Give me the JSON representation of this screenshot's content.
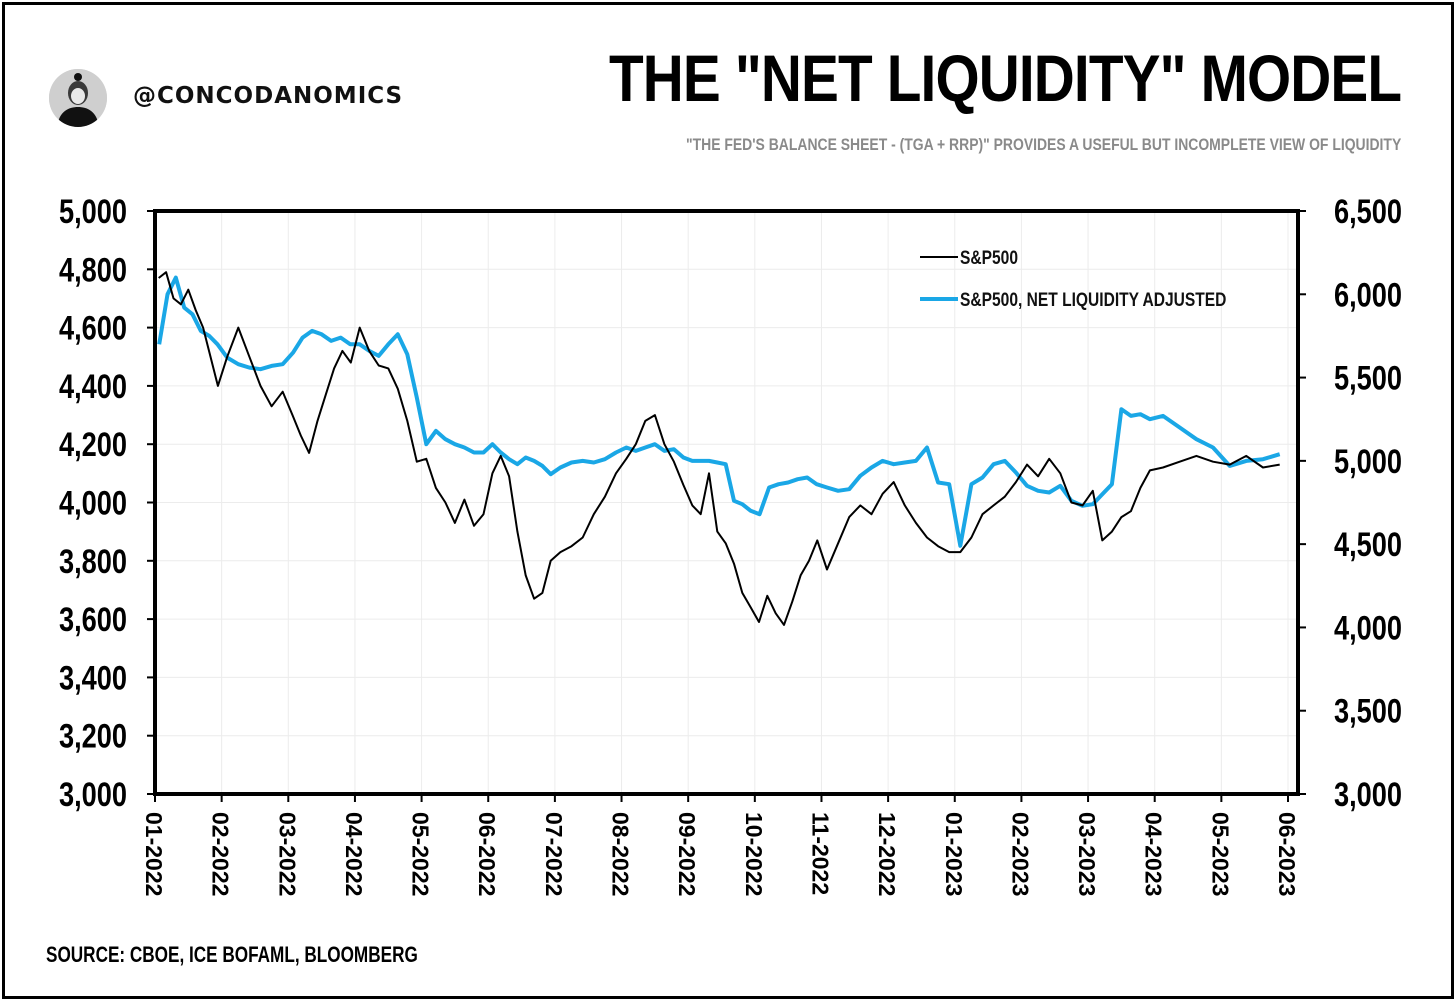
{
  "header": {
    "handle": "@CONCODANOMICS",
    "title": "THE \"NET LIQUIDITY\" MODEL",
    "subtitle": "\"THE FED'S BALANCE SHEET - (TGA + RRP)\" PROVIDES A USEFUL BUT INCOMPLETE VIEW OF LIQUIDITY"
  },
  "footer": {
    "source": "SOURCE: CBOE, ICE BOFAML, BLOOMBERG"
  },
  "chart_data": {
    "type": "line",
    "title": "THE \"NET LIQUIDITY\" MODEL",
    "x_ticks": [
      "01-2022",
      "02-2022",
      "03-2022",
      "04-2022",
      "05-2022",
      "06-2022",
      "07-2022",
      "08-2022",
      "09-2022",
      "10-2022",
      "11-2022",
      "12-2022",
      "01-2023",
      "02-2023",
      "03-2023",
      "04-2023",
      "05-2023",
      "06-2023"
    ],
    "y_left": {
      "min": 3000,
      "max": 5000,
      "ticks": [
        "3,000",
        "3,200",
        "3,400",
        "3,600",
        "3,800",
        "4,000",
        "4,200",
        "4,400",
        "4,600",
        "4,800",
        "5,000"
      ]
    },
    "y_right": {
      "min": 3000,
      "max": 6500,
      "ticks": [
        "3,000",
        "3,500",
        "4,000",
        "4,500",
        "5,000",
        "5,500",
        "6,000",
        "6,500"
      ]
    },
    "grid": true,
    "legend_position": "top-right",
    "colors": {
      "sp500": "#000000",
      "adjusted": "#1aa7e6"
    },
    "series": [
      {
        "name": "S&P500",
        "axis": "left",
        "points": [
          [
            "01-2022",
            4770
          ],
          [
            "01-2022",
            4790
          ],
          [
            "01-2022",
            4700
          ],
          [
            "01-2022",
            4680
          ],
          [
            "01-2022",
            4730
          ],
          [
            "01-2022",
            4660
          ],
          [
            "01-2022",
            4600
          ],
          [
            "01-2022",
            4500
          ],
          [
            "01-2022",
            4400
          ],
          [
            "02-2022",
            4500
          ],
          [
            "02-2022",
            4600
          ],
          [
            "02-2022",
            4500
          ],
          [
            "02-2022",
            4400
          ],
          [
            "02-2022",
            4330
          ],
          [
            "02-2022",
            4380
          ],
          [
            "03-2022",
            4300
          ],
          [
            "03-2022",
            4230
          ],
          [
            "03-2022",
            4170
          ],
          [
            "03-2022",
            4280
          ],
          [
            "03-2022",
            4370
          ],
          [
            "03-2022",
            4460
          ],
          [
            "03-2022",
            4520
          ],
          [
            "03-2022",
            4480
          ],
          [
            "04-2022",
            4600
          ],
          [
            "04-2022",
            4520
          ],
          [
            "04-2022",
            4470
          ],
          [
            "04-2022",
            4460
          ],
          [
            "04-2022",
            4390
          ],
          [
            "04-2022",
            4280
          ],
          [
            "04-2022",
            4140
          ],
          [
            "05-2022",
            4150
          ],
          [
            "05-2022",
            4050
          ],
          [
            "05-2022",
            4000
          ],
          [
            "05-2022",
            3930
          ],
          [
            "05-2022",
            4010
          ],
          [
            "05-2022",
            3920
          ],
          [
            "05-2022",
            3960
          ],
          [
            "06-2022",
            4100
          ],
          [
            "06-2022",
            4160
          ],
          [
            "06-2022",
            4090
          ],
          [
            "06-2022",
            3900
          ],
          [
            "06-2022",
            3750
          ],
          [
            "06-2022",
            3670
          ],
          [
            "06-2022",
            3690
          ],
          [
            "06-2022",
            3800
          ],
          [
            "07-2022",
            3830
          ],
          [
            "07-2022",
            3850
          ],
          [
            "07-2022",
            3880
          ],
          [
            "07-2022",
            3960
          ],
          [
            "07-2022",
            4020
          ],
          [
            "07-2022",
            4100
          ],
          [
            "08-2022",
            4150
          ],
          [
            "08-2022",
            4200
          ],
          [
            "08-2022",
            4280
          ],
          [
            "08-2022",
            4300
          ],
          [
            "08-2022",
            4200
          ],
          [
            "08-2022",
            4140
          ],
          [
            "08-2022",
            4060
          ],
          [
            "09-2022",
            3990
          ],
          [
            "09-2022",
            3960
          ],
          [
            "09-2022",
            4100
          ],
          [
            "09-2022",
            3900
          ],
          [
            "09-2022",
            3860
          ],
          [
            "09-2022",
            3790
          ],
          [
            "09-2022",
            3690
          ],
          [
            "09-2022",
            3640
          ],
          [
            "10-2022",
            3590
          ],
          [
            "10-2022",
            3680
          ],
          [
            "10-2022",
            3620
          ],
          [
            "10-2022",
            3580
          ],
          [
            "10-2022",
            3660
          ],
          [
            "10-2022",
            3750
          ],
          [
            "10-2022",
            3800
          ],
          [
            "10-2022",
            3870
          ],
          [
            "11-2022",
            3770
          ],
          [
            "11-2022",
            3860
          ],
          [
            "11-2022",
            3950
          ],
          [
            "11-2022",
            3990
          ],
          [
            "11-2022",
            3960
          ],
          [
            "11-2022",
            4030
          ],
          [
            "12-2022",
            4070
          ],
          [
            "12-2022",
            3990
          ],
          [
            "12-2022",
            3930
          ],
          [
            "12-2022",
            3880
          ],
          [
            "12-2022",
            3850
          ],
          [
            "12-2022",
            3830
          ],
          [
            "01-2023",
            3830
          ],
          [
            "01-2023",
            3880
          ],
          [
            "01-2023",
            3960
          ],
          [
            "01-2023",
            3990
          ],
          [
            "01-2023",
            4020
          ],
          [
            "01-2023",
            4070
          ],
          [
            "02-2023",
            4130
          ],
          [
            "02-2023",
            4090
          ],
          [
            "02-2023",
            4150
          ],
          [
            "02-2023",
            4100
          ],
          [
            "02-2023",
            4000
          ],
          [
            "02-2023",
            3990
          ],
          [
            "03-2023",
            4040
          ],
          [
            "03-2023",
            3870
          ],
          [
            "03-2023",
            3900
          ],
          [
            "03-2023",
            3950
          ],
          [
            "03-2023",
            3970
          ],
          [
            "03-2023",
            4050
          ],
          [
            "03-2023",
            4110
          ],
          [
            "04-2023",
            4120
          ],
          [
            "04-2023",
            4140
          ],
          [
            "04-2023",
            4160
          ],
          [
            "04-2023",
            4140
          ],
          [
            "05-2023",
            4130
          ],
          [
            "05-2023",
            4160
          ],
          [
            "05-2023",
            4120
          ],
          [
            "05-2023",
            4130
          ]
        ]
      },
      {
        "name": "S&P500, NET LIQUIDITY ADJUSTED",
        "axis": "right",
        "points": [
          [
            "01-2022",
            5700
          ],
          [
            "01-2022",
            6000
          ],
          [
            "01-2022",
            6100
          ],
          [
            "01-2022",
            5920
          ],
          [
            "01-2022",
            5880
          ],
          [
            "01-2022",
            5780
          ],
          [
            "01-2022",
            5750
          ],
          [
            "01-2022",
            5700
          ],
          [
            "02-2022",
            5620
          ],
          [
            "02-2022",
            5580
          ],
          [
            "02-2022",
            5560
          ],
          [
            "02-2022",
            5550
          ],
          [
            "02-2022",
            5570
          ],
          [
            "02-2022",
            5580
          ],
          [
            "03-2022",
            5650
          ],
          [
            "03-2022",
            5740
          ],
          [
            "03-2022",
            5780
          ],
          [
            "03-2022",
            5760
          ],
          [
            "03-2022",
            5720
          ],
          [
            "03-2022",
            5740
          ],
          [
            "03-2022",
            5700
          ],
          [
            "04-2022",
            5700
          ],
          [
            "04-2022",
            5660
          ],
          [
            "04-2022",
            5630
          ],
          [
            "04-2022",
            5700
          ],
          [
            "04-2022",
            5760
          ],
          [
            "04-2022",
            5640
          ],
          [
            "04-2022",
            5380
          ],
          [
            "05-2022",
            5100
          ],
          [
            "05-2022",
            5180
          ],
          [
            "05-2022",
            5130
          ],
          [
            "05-2022",
            5100
          ],
          [
            "05-2022",
            5080
          ],
          [
            "05-2022",
            5050
          ],
          [
            "05-2022",
            5050
          ],
          [
            "06-2022",
            5100
          ],
          [
            "06-2022",
            5050
          ],
          [
            "06-2022",
            5010
          ],
          [
            "06-2022",
            4980
          ],
          [
            "06-2022",
            5020
          ],
          [
            "06-2022",
            5000
          ],
          [
            "06-2022",
            4970
          ],
          [
            "06-2022",
            4920
          ],
          [
            "07-2022",
            4960
          ],
          [
            "07-2022",
            4990
          ],
          [
            "07-2022",
            5000
          ],
          [
            "07-2022",
            4990
          ],
          [
            "07-2022",
            5010
          ],
          [
            "07-2022",
            5050
          ],
          [
            "08-2022",
            5080
          ],
          [
            "08-2022",
            5060
          ],
          [
            "08-2022",
            5080
          ],
          [
            "08-2022",
            5100
          ],
          [
            "08-2022",
            5060
          ],
          [
            "08-2022",
            5070
          ],
          [
            "08-2022",
            5020
          ],
          [
            "09-2022",
            5000
          ],
          [
            "09-2022",
            5000
          ],
          [
            "09-2022",
            5000
          ],
          [
            "09-2022",
            4990
          ],
          [
            "09-2022",
            4980
          ],
          [
            "09-2022",
            4760
          ],
          [
            "09-2022",
            4740
          ],
          [
            "09-2022",
            4700
          ],
          [
            "10-2022",
            4680
          ],
          [
            "10-2022",
            4840
          ],
          [
            "10-2022",
            4860
          ],
          [
            "10-2022",
            4870
          ],
          [
            "10-2022",
            4890
          ],
          [
            "10-2022",
            4900
          ],
          [
            "10-2022",
            4860
          ],
          [
            "11-2022",
            4840
          ],
          [
            "11-2022",
            4820
          ],
          [
            "11-2022",
            4830
          ],
          [
            "11-2022",
            4910
          ],
          [
            "11-2022",
            4960
          ],
          [
            "11-2022",
            5000
          ],
          [
            "12-2022",
            4980
          ],
          [
            "12-2022",
            4990
          ],
          [
            "12-2022",
            5000
          ],
          [
            "12-2022",
            5080
          ],
          [
            "12-2022",
            4870
          ],
          [
            "12-2022",
            4860
          ],
          [
            "01-2023",
            4490
          ],
          [
            "01-2023",
            4860
          ],
          [
            "01-2023",
            4900
          ],
          [
            "01-2023",
            4980
          ],
          [
            "01-2023",
            5000
          ],
          [
            "01-2023",
            4930
          ],
          [
            "02-2023",
            4850
          ],
          [
            "02-2023",
            4820
          ],
          [
            "02-2023",
            4810
          ],
          [
            "02-2023",
            4850
          ],
          [
            "02-2023",
            4760
          ],
          [
            "02-2023",
            4730
          ],
          [
            "03-2023",
            4740
          ],
          [
            "03-2023",
            4800
          ],
          [
            "03-2023",
            4860
          ],
          [
            "03-2023",
            5310
          ],
          [
            "03-2023",
            5270
          ],
          [
            "03-2023",
            5280
          ],
          [
            "03-2023",
            5250
          ],
          [
            "04-2023",
            5270
          ],
          [
            "04-2023",
            5200
          ],
          [
            "04-2023",
            5130
          ],
          [
            "04-2023",
            5080
          ],
          [
            "05-2023",
            4970
          ],
          [
            "05-2023",
            5000
          ],
          [
            "05-2023",
            5010
          ],
          [
            "05-2023",
            5040
          ]
        ]
      }
    ]
  }
}
